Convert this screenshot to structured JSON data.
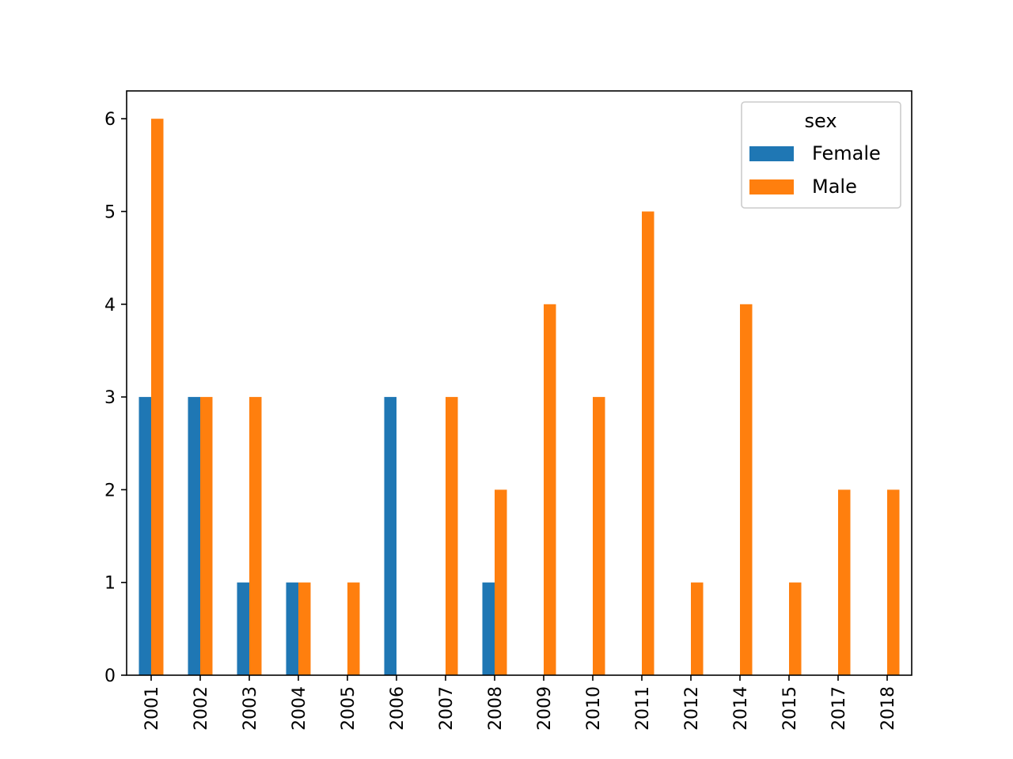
{
  "chart_data": {
    "type": "bar",
    "categories": [
      "2001",
      "2002",
      "2003",
      "2004",
      "2005",
      "2006",
      "2007",
      "2008",
      "2009",
      "2010",
      "2011",
      "2012",
      "2014",
      "2015",
      "2017",
      "2018"
    ],
    "series": [
      {
        "name": "Female",
        "color": "#1f77b4",
        "values": [
          3,
          3,
          1,
          1,
          0,
          3,
          0,
          1,
          0,
          0,
          0,
          0,
          0,
          0,
          0,
          0
        ]
      },
      {
        "name": "Male",
        "color": "#ff7f0e",
        "values": [
          6,
          3,
          3,
          1,
          1,
          0,
          3,
          2,
          4,
          3,
          5,
          1,
          4,
          1,
          2,
          2
        ]
      }
    ],
    "title": "",
    "xlabel": "",
    "ylabel": "",
    "ylim": [
      0,
      6.3
    ],
    "yticks": [
      0,
      1,
      2,
      3,
      4,
      5,
      6
    ],
    "xtick_rotation": 90,
    "grid": false,
    "legend": {
      "title": "sex",
      "placement": "top-right"
    }
  }
}
